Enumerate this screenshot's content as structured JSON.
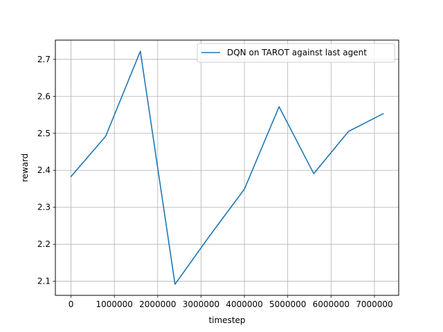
{
  "chart_data": {
    "type": "line",
    "xlabel": "timestep",
    "ylabel": "reward",
    "xlim": [
      -360000,
      7560000
    ],
    "ylim": [
      2.062,
      2.752
    ],
    "xticks": [
      0,
      1000000,
      2000000,
      3000000,
      4000000,
      5000000,
      6000000,
      7000000
    ],
    "xtick_labels": [
      "0",
      "1000000",
      "2000000",
      "3000000",
      "4000000",
      "5000000",
      "6000000",
      "7000000"
    ],
    "yticks": [
      2.1,
      2.2,
      2.3,
      2.4,
      2.5,
      2.6,
      2.7
    ],
    "ytick_labels": [
      "2.1",
      "2.2",
      "2.3",
      "2.4",
      "2.5",
      "2.6",
      "2.7"
    ],
    "grid": true,
    "legend_position": "top-right",
    "series": [
      {
        "name": "DQN on TAROT against last agent",
        "color": "#1f77b4",
        "x": [
          0,
          800000,
          1600000,
          2400000,
          3200000,
          4000000,
          4800000,
          5600000,
          6400000,
          7200000
        ],
        "y": [
          2.383,
          2.492,
          2.722,
          2.092,
          2.223,
          2.349,
          2.572,
          2.391,
          2.505,
          2.553
        ]
      }
    ]
  }
}
